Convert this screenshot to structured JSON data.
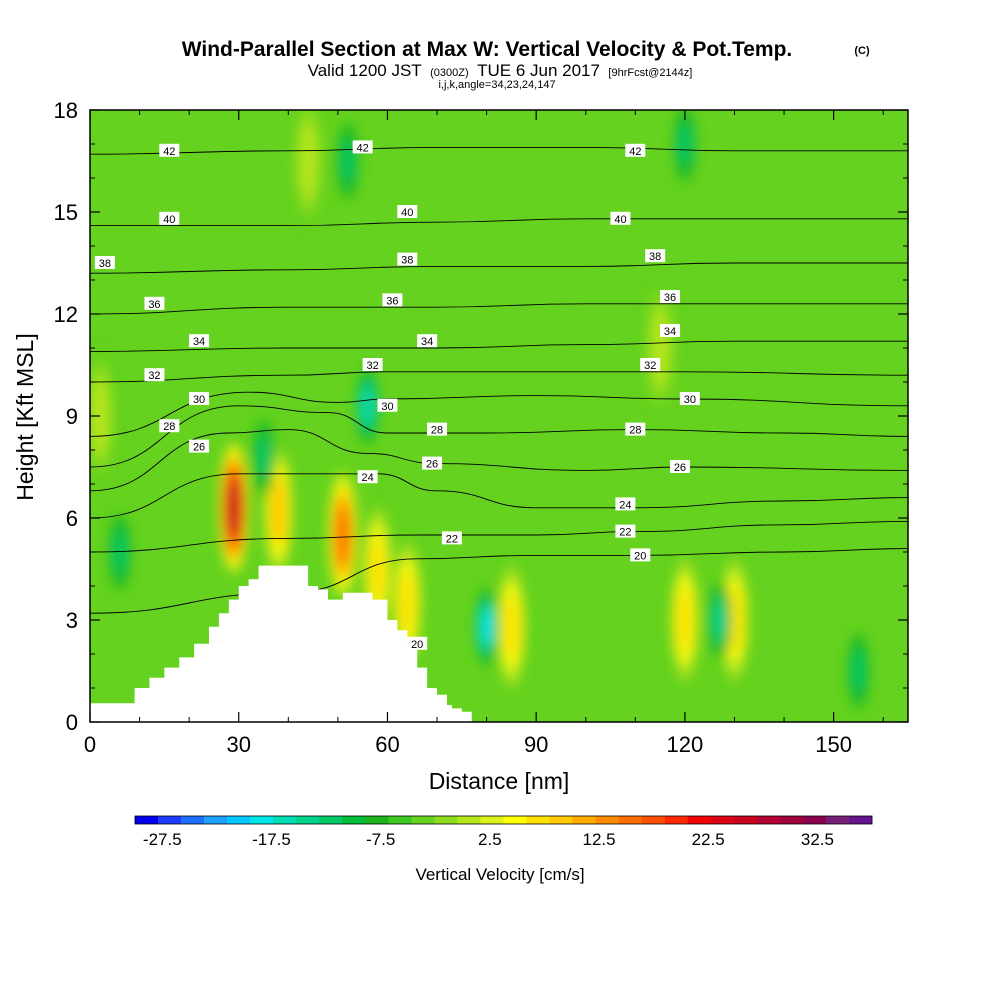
{
  "title": {
    "main": "Wind-Parallel Section at Max W: Vertical Velocity & Pot.Temp.",
    "copyright": "(C)",
    "valid_prefix": "Valid 1200 JST",
    "valid_utc": "(0300Z)",
    "valid_date": "TUE 6 Jun 2017",
    "forecast": "[9hrFcst@2144z]",
    "section_params": "i,j,k,angle=34,23,24,147"
  },
  "chart_data": {
    "type": "heatmap",
    "xlabel": "Distance [nm]",
    "ylabel": "Height [Kft MSL]",
    "xlim": [
      0,
      165
    ],
    "ylim": [
      0,
      18
    ],
    "x_ticks": [
      "0",
      "30",
      "60",
      "90",
      "120",
      "150"
    ],
    "y_ticks": [
      "0",
      "3",
      "6",
      "9",
      "12",
      "15",
      "18"
    ],
    "colorbar": {
      "label": "Vertical Velocity [cm/s]",
      "tick_labels": [
        "-27.5",
        "-17.5",
        "-7.5",
        "2.5",
        "12.5",
        "22.5",
        "32.5"
      ],
      "range": [
        -30,
        37.5
      ],
      "interval": 2.5,
      "colors": [
        "#0000f0",
        "#1e3cff",
        "#1e6eff",
        "#1ea0ff",
        "#00c8ff",
        "#00e6e6",
        "#00dcb4",
        "#00d28c",
        "#00c864",
        "#00be3c",
        "#1eb41e",
        "#3cc81e",
        "#64d21e",
        "#8cdc1e",
        "#b4e61e",
        "#dcf01e",
        "#ffff00",
        "#ffe100",
        "#ffc800",
        "#ffaa00",
        "#ff8c00",
        "#ff6e00",
        "#ff5000",
        "#ff2800",
        "#f00000",
        "#dc0014",
        "#c8001e",
        "#b40032",
        "#a0003c",
        "#8c0050",
        "#781e78",
        "#64148c"
      ]
    },
    "vertical_velocity_cm_s": {
      "background": 0,
      "features": [
        {
          "kind": "updraft",
          "x": 29,
          "y": 6.3,
          "peak": 36
        },
        {
          "kind": "updraft",
          "x": 38,
          "y": 6.2,
          "peak": 17
        },
        {
          "kind": "updraft",
          "x": 51,
          "y": 5.5,
          "peak": 25
        },
        {
          "kind": "updraft",
          "x": 58,
          "y": 4.5,
          "peak": 14
        },
        {
          "kind": "updraft",
          "x": 64,
          "y": 3.5,
          "peak": 13
        },
        {
          "kind": "updraft",
          "x": 85,
          "y": 2.8,
          "peak": 13
        },
        {
          "kind": "updraft",
          "x": 120,
          "y": 3.0,
          "peak": 15
        },
        {
          "kind": "updraft",
          "x": 130,
          "y": 3.0,
          "peak": 13
        },
        {
          "kind": "updraft",
          "x": 2,
          "y": 9.0,
          "peak": 6
        },
        {
          "kind": "updraft",
          "x": 44,
          "y": 16.5,
          "peak": 6
        },
        {
          "kind": "updraft",
          "x": 115,
          "y": 11.0,
          "peak": 6
        },
        {
          "kind": "downdraft",
          "x": 80,
          "y": 2.8,
          "peak": -16
        },
        {
          "kind": "downdraft",
          "x": 56,
          "y": 9.3,
          "peak": -15
        },
        {
          "kind": "downdraft",
          "x": 6,
          "y": 5.0,
          "peak": -10
        },
        {
          "kind": "downdraft",
          "x": 127,
          "y": 3.0,
          "peak": -11
        },
        {
          "kind": "downdraft",
          "x": 155,
          "y": 1.5,
          "peak": -9
        },
        {
          "kind": "downdraft",
          "x": 52,
          "y": 16.5,
          "peak": -9
        },
        {
          "kind": "downdraft",
          "x": 120,
          "y": 17.0,
          "peak": -9
        },
        {
          "kind": "downdraft",
          "x": 35,
          "y": 7.8,
          "peak": -8
        }
      ]
    },
    "potential_temperature_contours": [
      {
        "label": "20",
        "height_kft_at": [
          [
            0,
            3.2
          ],
          [
            40,
            3.8
          ],
          [
            66,
            4.8
          ],
          [
            90,
            4.9
          ],
          [
            110,
            4.9
          ],
          [
            140,
            5.0
          ],
          [
            165,
            5.1
          ]
        ]
      },
      {
        "label": "22",
        "height_kft_at": [
          [
            0,
            5.0
          ],
          [
            40,
            5.4
          ],
          [
            66,
            5.5
          ],
          [
            90,
            5.5
          ],
          [
            110,
            5.6
          ],
          [
            140,
            5.8
          ],
          [
            165,
            5.9
          ]
        ]
      },
      {
        "label": "24",
        "height_kft_at": [
          [
            0,
            6.0
          ],
          [
            30,
            7.3
          ],
          [
            58,
            7.3
          ],
          [
            70,
            6.8
          ],
          [
            90,
            6.3
          ],
          [
            110,
            6.3
          ],
          [
            140,
            6.5
          ],
          [
            165,
            6.6
          ]
        ]
      },
      {
        "label": "26",
        "height_kft_at": [
          [
            0,
            6.8
          ],
          [
            28,
            8.5
          ],
          [
            40,
            8.6
          ],
          [
            56,
            7.9
          ],
          [
            70,
            7.6
          ],
          [
            100,
            7.4
          ],
          [
            120,
            7.5
          ],
          [
            165,
            7.4
          ]
        ]
      },
      {
        "label": "28",
        "height_kft_at": [
          [
            0,
            7.5
          ],
          [
            30,
            9.3
          ],
          [
            48,
            9.1
          ],
          [
            60,
            8.5
          ],
          [
            80,
            8.5
          ],
          [
            110,
            8.6
          ],
          [
            140,
            8.5
          ],
          [
            165,
            8.4
          ]
        ]
      },
      {
        "label": "30",
        "height_kft_at": [
          [
            0,
            8.4
          ],
          [
            32,
            9.7
          ],
          [
            50,
            9.4
          ],
          [
            60,
            9.5
          ],
          [
            90,
            9.6
          ],
          [
            120,
            9.5
          ],
          [
            165,
            9.3
          ]
        ]
      },
      {
        "label": "32",
        "height_kft_at": [
          [
            0,
            10.0
          ],
          [
            40,
            10.2
          ],
          [
            60,
            10.3
          ],
          [
            90,
            10.3
          ],
          [
            120,
            10.3
          ],
          [
            165,
            10.2
          ]
        ]
      },
      {
        "label": "34",
        "height_kft_at": [
          [
            0,
            10.9
          ],
          [
            40,
            11.0
          ],
          [
            70,
            11.0
          ],
          [
            100,
            11.1
          ],
          [
            130,
            11.2
          ],
          [
            165,
            11.2
          ]
        ]
      },
      {
        "label": "36",
        "height_kft_at": [
          [
            0,
            12.0
          ],
          [
            40,
            12.2
          ],
          [
            70,
            12.2
          ],
          [
            100,
            12.3
          ],
          [
            130,
            12.3
          ],
          [
            165,
            12.3
          ]
        ]
      },
      {
        "label": "38",
        "height_kft_at": [
          [
            0,
            13.2
          ],
          [
            40,
            13.3
          ],
          [
            70,
            13.4
          ],
          [
            100,
            13.4
          ],
          [
            130,
            13.5
          ],
          [
            165,
            13.5
          ]
        ]
      },
      {
        "label": "40",
        "height_kft_at": [
          [
            0,
            14.6
          ],
          [
            40,
            14.6
          ],
          [
            70,
            14.7
          ],
          [
            100,
            14.8
          ],
          [
            130,
            14.8
          ],
          [
            165,
            14.8
          ]
        ]
      },
      {
        "label": "42",
        "height_kft_at": [
          [
            0,
            16.7
          ],
          [
            40,
            16.8
          ],
          [
            70,
            16.9
          ],
          [
            100,
            16.9
          ],
          [
            130,
            16.8
          ],
          [
            165,
            16.8
          ]
        ]
      }
    ],
    "contour_labels": [
      {
        "text": "42",
        "x": 16,
        "y": 16.8
      },
      {
        "text": "42",
        "x": 55,
        "y": 16.9
      },
      {
        "text": "42",
        "x": 110,
        "y": 16.8
      },
      {
        "text": "40",
        "x": 16,
        "y": 14.8
      },
      {
        "text": "40",
        "x": 64,
        "y": 15.0
      },
      {
        "text": "40",
        "x": 107,
        "y": 14.8
      },
      {
        "text": "38",
        "x": 3,
        "y": 13.5
      },
      {
        "text": "38",
        "x": 64,
        "y": 13.6
      },
      {
        "text": "38",
        "x": 114,
        "y": 13.7
      },
      {
        "text": "36",
        "x": 13,
        "y": 12.3
      },
      {
        "text": "36",
        "x": 61,
        "y": 12.4
      },
      {
        "text": "36",
        "x": 117,
        "y": 12.5
      },
      {
        "text": "34",
        "x": 22,
        "y": 11.2
      },
      {
        "text": "34",
        "x": 68,
        "y": 11.2
      },
      {
        "text": "34",
        "x": 117,
        "y": 11.5
      },
      {
        "text": "32",
        "x": 13,
        "y": 10.2
      },
      {
        "text": "32",
        "x": 57,
        "y": 10.5
      },
      {
        "text": "32",
        "x": 113,
        "y": 10.5
      },
      {
        "text": "30",
        "x": 22,
        "y": 9.5
      },
      {
        "text": "30",
        "x": 60,
        "y": 9.3
      },
      {
        "text": "30",
        "x": 121,
        "y": 9.5
      },
      {
        "text": "28",
        "x": 16,
        "y": 8.7
      },
      {
        "text": "28",
        "x": 70,
        "y": 8.6
      },
      {
        "text": "28",
        "x": 110,
        "y": 8.6
      },
      {
        "text": "26",
        "x": 22,
        "y": 8.1
      },
      {
        "text": "26",
        "x": 69,
        "y": 7.6
      },
      {
        "text": "26",
        "x": 119,
        "y": 7.5
      },
      {
        "text": "24",
        "x": 56,
        "y": 7.2
      },
      {
        "text": "24",
        "x": 108,
        "y": 6.4
      },
      {
        "text": "22",
        "x": 73,
        "y": 5.4
      },
      {
        "text": "22",
        "x": 108,
        "y": 5.6
      },
      {
        "text": "20",
        "x": 66,
        "y": 2.3
      },
      {
        "text": "20",
        "x": 111,
        "y": 4.9
      }
    ],
    "terrain_steps": [
      [
        0,
        0.55
      ],
      [
        6,
        0.55
      ],
      [
        9,
        1.0
      ],
      [
        12,
        1.3
      ],
      [
        15,
        1.6
      ],
      [
        18,
        1.9
      ],
      [
        21,
        2.3
      ],
      [
        24,
        2.8
      ],
      [
        26,
        3.2
      ],
      [
        28,
        3.6
      ],
      [
        30,
        4.0
      ],
      [
        32,
        4.2
      ],
      [
        34,
        4.6
      ],
      [
        36,
        4.6
      ],
      [
        40,
        4.6
      ],
      [
        44,
        4.0
      ],
      [
        46,
        3.9
      ],
      [
        48,
        3.6
      ],
      [
        51,
        3.8
      ],
      [
        54,
        3.8
      ],
      [
        57,
        3.6
      ],
      [
        60,
        3.0
      ],
      [
        62,
        2.7
      ],
      [
        64,
        2.2
      ],
      [
        66,
        1.6
      ],
      [
        68,
        1.0
      ],
      [
        70,
        0.8
      ],
      [
        72,
        0.5
      ],
      [
        73,
        0.4
      ],
      [
        75,
        0.3
      ],
      [
        76,
        0.3
      ]
    ]
  }
}
